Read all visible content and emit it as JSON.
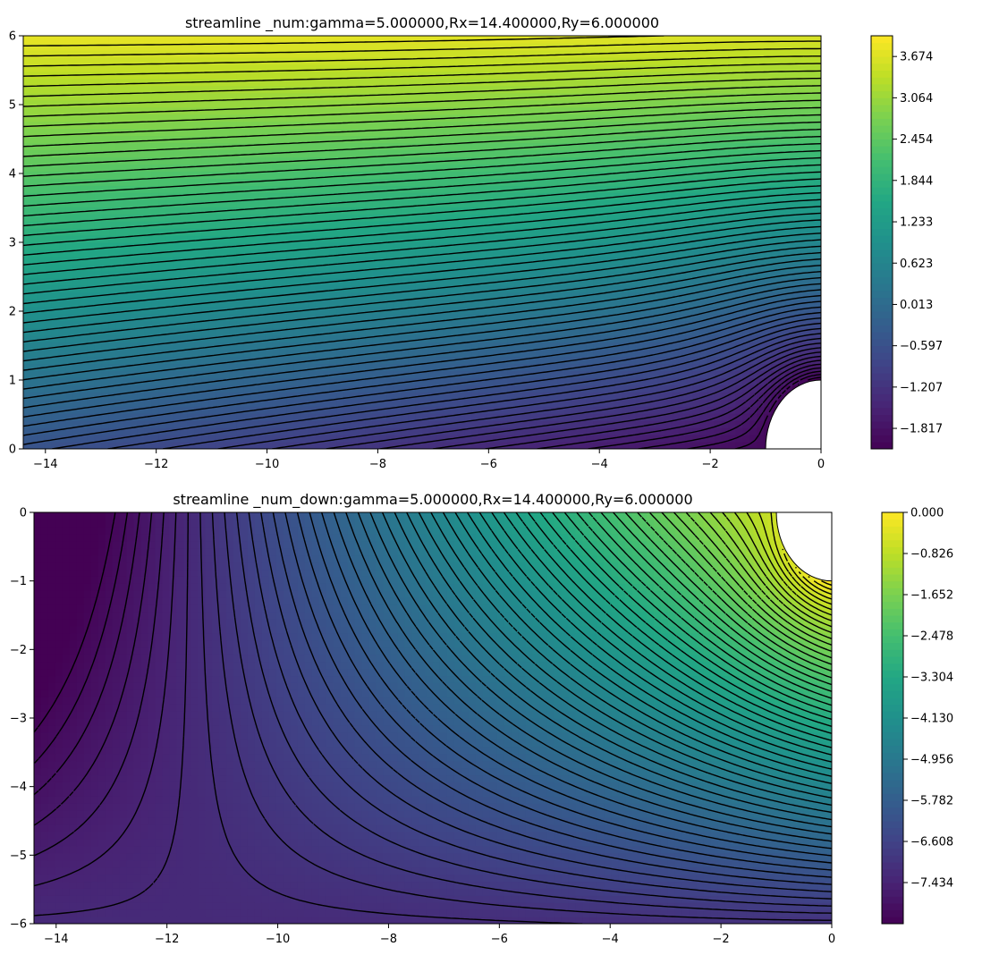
{
  "chart_data": [
    {
      "type": "heatmap",
      "subtype": "filled-contour-with-contour-lines",
      "title": "streamline _num:gamma=5.000000,Rx=14.400000,Ry=6.000000",
      "xlabel": "",
      "ylabel": "",
      "xlim": [
        -14.4,
        0
      ],
      "ylim": [
        0,
        6
      ],
      "xticks": [
        -14,
        -12,
        -10,
        -8,
        -6,
        -4,
        -2,
        0
      ],
      "xtick_labels": [
        "−14",
        "−12",
        "−10",
        "−8",
        "−6",
        "−4",
        "−2",
        "0"
      ],
      "yticks": [
        0,
        1,
        2,
        3,
        4,
        5,
        6
      ],
      "ytick_labels": [
        "0",
        "1",
        "2",
        "3",
        "4",
        "5",
        "6"
      ],
      "obstacle": {
        "shape": "quarter-circle",
        "center": [
          0,
          0
        ],
        "radius": 1
      },
      "colormap": "viridis",
      "value_range": [
        -2.12,
        3.98
      ],
      "contour_levels": 60,
      "negative_contours": "dashed",
      "positive_contours": "solid",
      "colorbar_ticks": [
        3.674,
        3.064,
        2.454,
        1.844,
        1.233,
        0.623,
        0.013,
        -0.597,
        -1.207,
        -1.817
      ],
      "colorbar_labels": [
        "3.674",
        "3.064",
        "2.454",
        "1.844",
        "1.233",
        "0.623",
        "0.013",
        "−0.597",
        "−1.207",
        "−1.817"
      ]
    },
    {
      "type": "heatmap",
      "subtype": "filled-contour-with-contour-lines",
      "title": "streamline _num_down:gamma=5.000000,Rx=14.400000,Ry=6.000000",
      "xlabel": "",
      "ylabel": "",
      "xlim": [
        -14.4,
        0
      ],
      "ylim": [
        -6,
        0
      ],
      "xticks": [
        -14,
        -12,
        -10,
        -8,
        -6,
        -4,
        -2,
        0
      ],
      "xtick_labels": [
        "−14",
        "−12",
        "−10",
        "−8",
        "−6",
        "−4",
        "−2",
        "0"
      ],
      "yticks": [
        0,
        -1,
        -2,
        -3,
        -4,
        -5,
        -6
      ],
      "ytick_labels": [
        "0",
        "−1",
        "−2",
        "−3",
        "−4",
        "−5",
        "−6"
      ],
      "obstacle": {
        "shape": "quarter-circle",
        "center": [
          0,
          0
        ],
        "radius": 1
      },
      "colormap": "viridis",
      "value_range": [
        -8.26,
        0
      ],
      "contour_levels": 60,
      "negative_contours": "dashed",
      "positive_contours": "solid",
      "colorbar_ticks": [
        0.0,
        -0.826,
        -1.652,
        -2.478,
        -3.304,
        -4.13,
        -4.956,
        -5.782,
        -6.608,
        -7.434
      ],
      "colorbar_labels": [
        "0.000",
        "−0.826",
        "−1.652",
        "−2.478",
        "−3.304",
        "−4.130",
        "−4.956",
        "−5.782",
        "−6.608",
        "−7.434"
      ]
    }
  ]
}
